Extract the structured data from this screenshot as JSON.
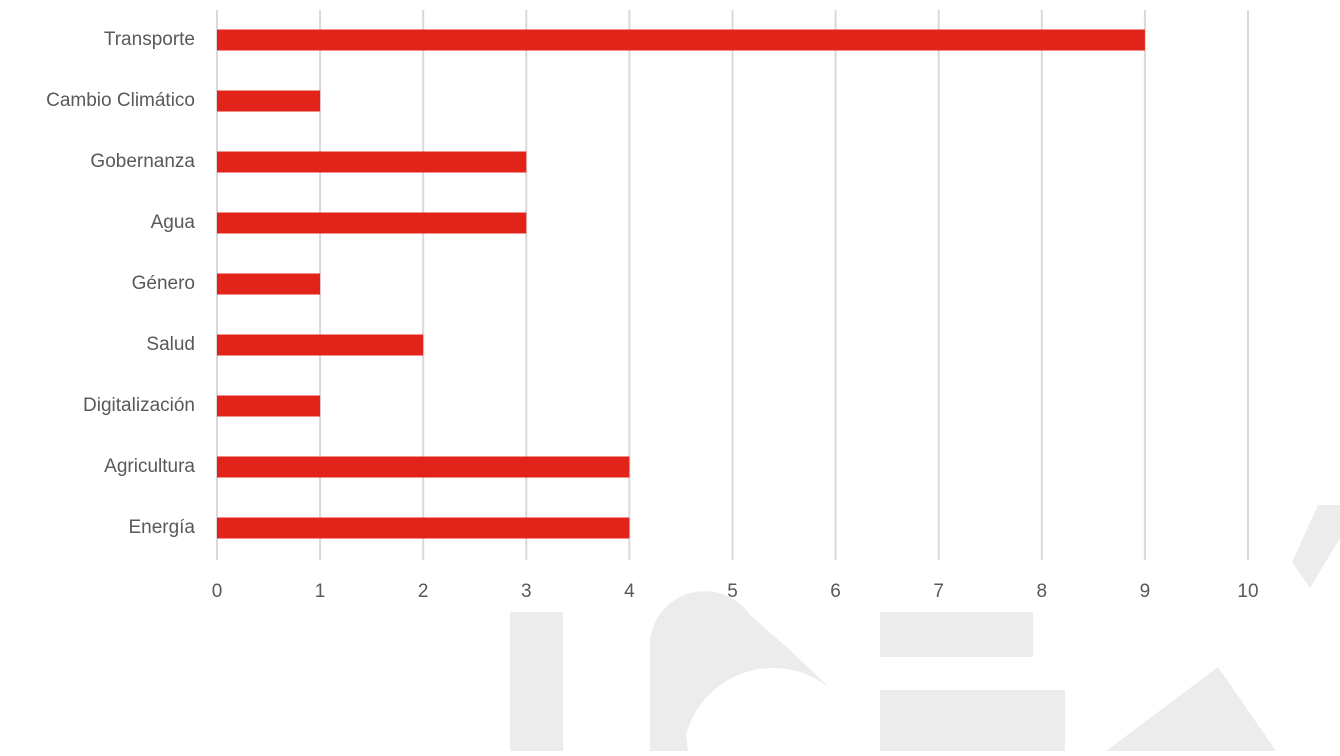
{
  "chart_data": {
    "type": "bar",
    "orientation": "horizontal",
    "categories": [
      "Transporte",
      "Cambio Climático",
      "Gobernanza",
      "Agua",
      "Género",
      "Salud",
      "Digitalización",
      "Agricultura",
      "Energía"
    ],
    "values": [
      9,
      1,
      3,
      3,
      1,
      2,
      1,
      4,
      4
    ],
    "xticks": [
      "0",
      "1",
      "2",
      "3",
      "4",
      "5",
      "6",
      "7",
      "8",
      "9",
      "10"
    ],
    "xlim": [
      0,
      10
    ],
    "grid": true,
    "title": "",
    "xlabel": "",
    "ylabel": ""
  },
  "watermark": {
    "text": "ICEX",
    "color": "#ececec"
  },
  "colors": {
    "bar": "#e2231a",
    "grid": "#d9d9d9",
    "label": "#595959"
  }
}
